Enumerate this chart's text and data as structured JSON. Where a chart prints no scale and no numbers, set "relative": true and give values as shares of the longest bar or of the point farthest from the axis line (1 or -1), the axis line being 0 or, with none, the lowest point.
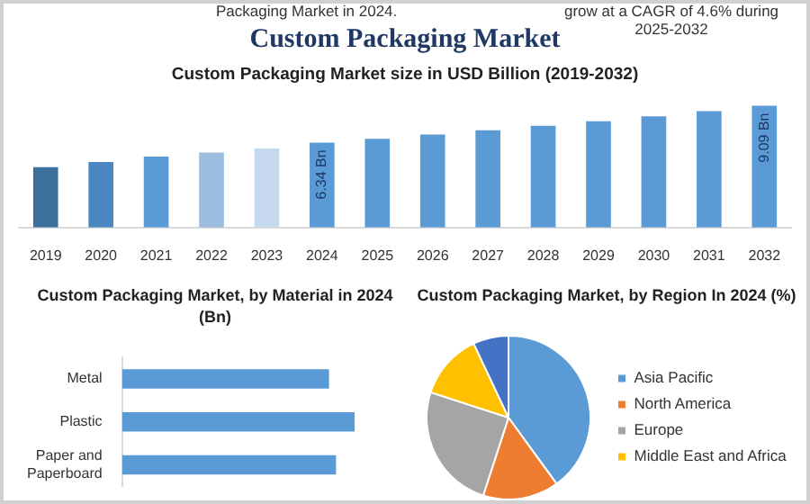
{
  "chart_data": [
    {
      "type": "bar",
      "title": "Custom Packaging Market",
      "subtitle": "Custom Packaging Market size in USD Billion (2019-2032)",
      "annotations": [
        "Packaging Market in 2024.",
        "grow at a CAGR of 4.6% during 2025-2032"
      ],
      "tick_labels": "x",
      "categories": [
        "2019",
        "2020",
        "2021",
        "2022",
        "2023",
        "2024",
        "2025",
        "2026",
        "2027",
        "2028",
        "2029",
        "2030",
        "2031",
        "2032"
      ],
      "values": [
        4.5,
        4.9,
        5.3,
        5.6,
        5.9,
        6.34,
        6.63,
        6.94,
        7.26,
        7.59,
        7.94,
        8.31,
        8.69,
        9.09
      ],
      "colors": [
        "#3d6f9c",
        "#4a86bf",
        "#5b9bd5",
        "#9dbde0",
        "#c5d8ee",
        "#5b9bd5",
        "#5b9bd5",
        "#5b9bd5",
        "#5b9bd5",
        "#5b9bd5",
        "#5b9bd5",
        "#5b9bd5",
        "#5b9bd5",
        "#5b9bd5"
      ],
      "value_labels": [
        null,
        null,
        null,
        null,
        null,
        "6.34 Bn",
        null,
        null,
        null,
        null,
        null,
        null,
        null,
        "9.09 Bn"
      ],
      "legend": false
    },
    {
      "type": "bar",
      "orientation": "horizontal",
      "title": "Custom Packaging Market, by Material in 2024 (Bn)",
      "relative": true,
      "categories": [
        "Metal",
        "Plastic",
        "Paper and Paperboard"
      ],
      "values": [
        0.89,
        1,
        0.92
      ],
      "color": "#5b9bd5",
      "legend": false
    },
    {
      "type": "pie",
      "title": "Custom Packaging Market, by Region In 2024 (%)",
      "categories": [
        "Asia Pacific",
        "North America",
        "Europe",
        "Middle East and Africa",
        null
      ],
      "values": [
        40,
        15,
        25,
        13,
        7
      ],
      "colors": [
        "#5b9bd5",
        "#ed7d31",
        "#a5a5a5",
        "#ffc000",
        "#4472c4"
      ],
      "legend": "right"
    }
  ]
}
